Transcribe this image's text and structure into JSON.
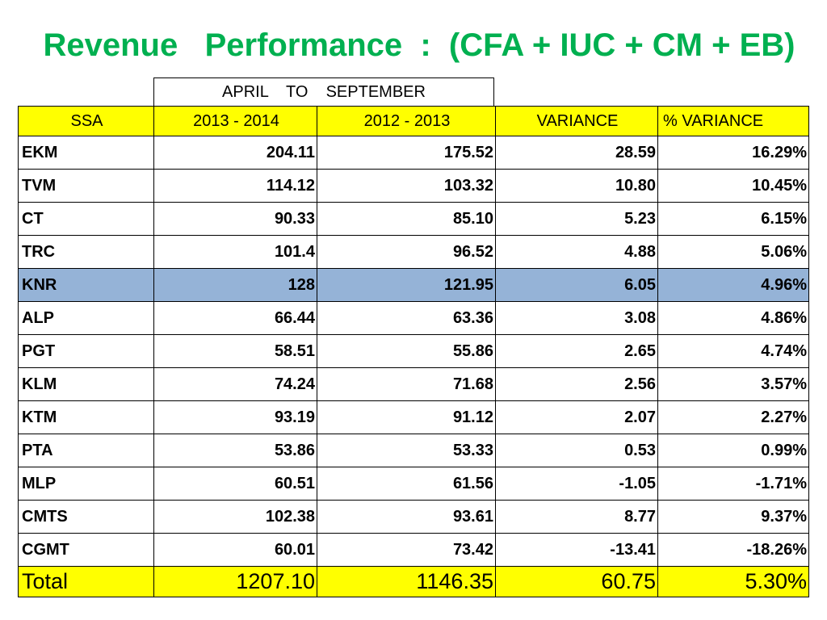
{
  "title": "Revenue   Performance  :  (CFA + IUC + CM + EB)",
  "period_header": "APRIL    TO    SEPTEMBER",
  "columns": [
    "SSA",
    "2013 - 2014",
    "2012 - 2013",
    "VARIANCE",
    "%  VARIANCE"
  ],
  "rows": [
    {
      "ssa": "EKM",
      "y2013": "204.11",
      "y2012": "175.52",
      "variance": "28.59",
      "pct": "16.29%"
    },
    {
      "ssa": "TVM",
      "y2013": "114.12",
      "y2012": "103.32",
      "variance": "10.80",
      "pct": "10.45%"
    },
    {
      "ssa": "CT",
      "y2013": "90.33",
      "y2012": "85.10",
      "variance": "5.23",
      "pct": "6.15%"
    },
    {
      "ssa": "TRC",
      "y2013": "101.4",
      "y2012": "96.52",
      "variance": "4.88",
      "pct": "5.06%"
    },
    {
      "ssa": "KNR",
      "y2013": "128",
      "y2012": "121.95",
      "variance": "6.05",
      "pct": "4.96%",
      "highlight": true
    },
    {
      "ssa": "ALP",
      "y2013": "66.44",
      "y2012": "63.36",
      "variance": "3.08",
      "pct": "4.86%"
    },
    {
      "ssa": "PGT",
      "y2013": "58.51",
      "y2012": "55.86",
      "variance": "2.65",
      "pct": "4.74%"
    },
    {
      "ssa": "KLM",
      "y2013": "74.24",
      "y2012": "71.68",
      "variance": "2.56",
      "pct": "3.57%"
    },
    {
      "ssa": "KTM",
      "y2013": "93.19",
      "y2012": "91.12",
      "variance": "2.07",
      "pct": "2.27%"
    },
    {
      "ssa": "PTA",
      "y2013": "53.86",
      "y2012": "53.33",
      "variance": "0.53",
      "pct": "0.99%"
    },
    {
      "ssa": "MLP",
      "y2013": "60.51",
      "y2012": "61.56",
      "variance": "-1.05",
      "pct": "-1.71%"
    },
    {
      "ssa": "CMTS",
      "y2013": "102.38",
      "y2012": "93.61",
      "variance": "8.77",
      "pct": "9.37%"
    },
    {
      "ssa": "CGMT",
      "y2013": "60.01",
      "y2012": "73.42",
      "variance": "-13.41",
      "pct": "-18.26%"
    }
  ],
  "total": {
    "ssa": "Total",
    "y2013": "1207.10",
    "y2012": "1146.35",
    "variance": "60.75",
    "pct": "5.30%"
  },
  "colors": {
    "title": "#00b050",
    "header_bg": "#ffff00",
    "highlight_bg": "#95b3d7"
  }
}
